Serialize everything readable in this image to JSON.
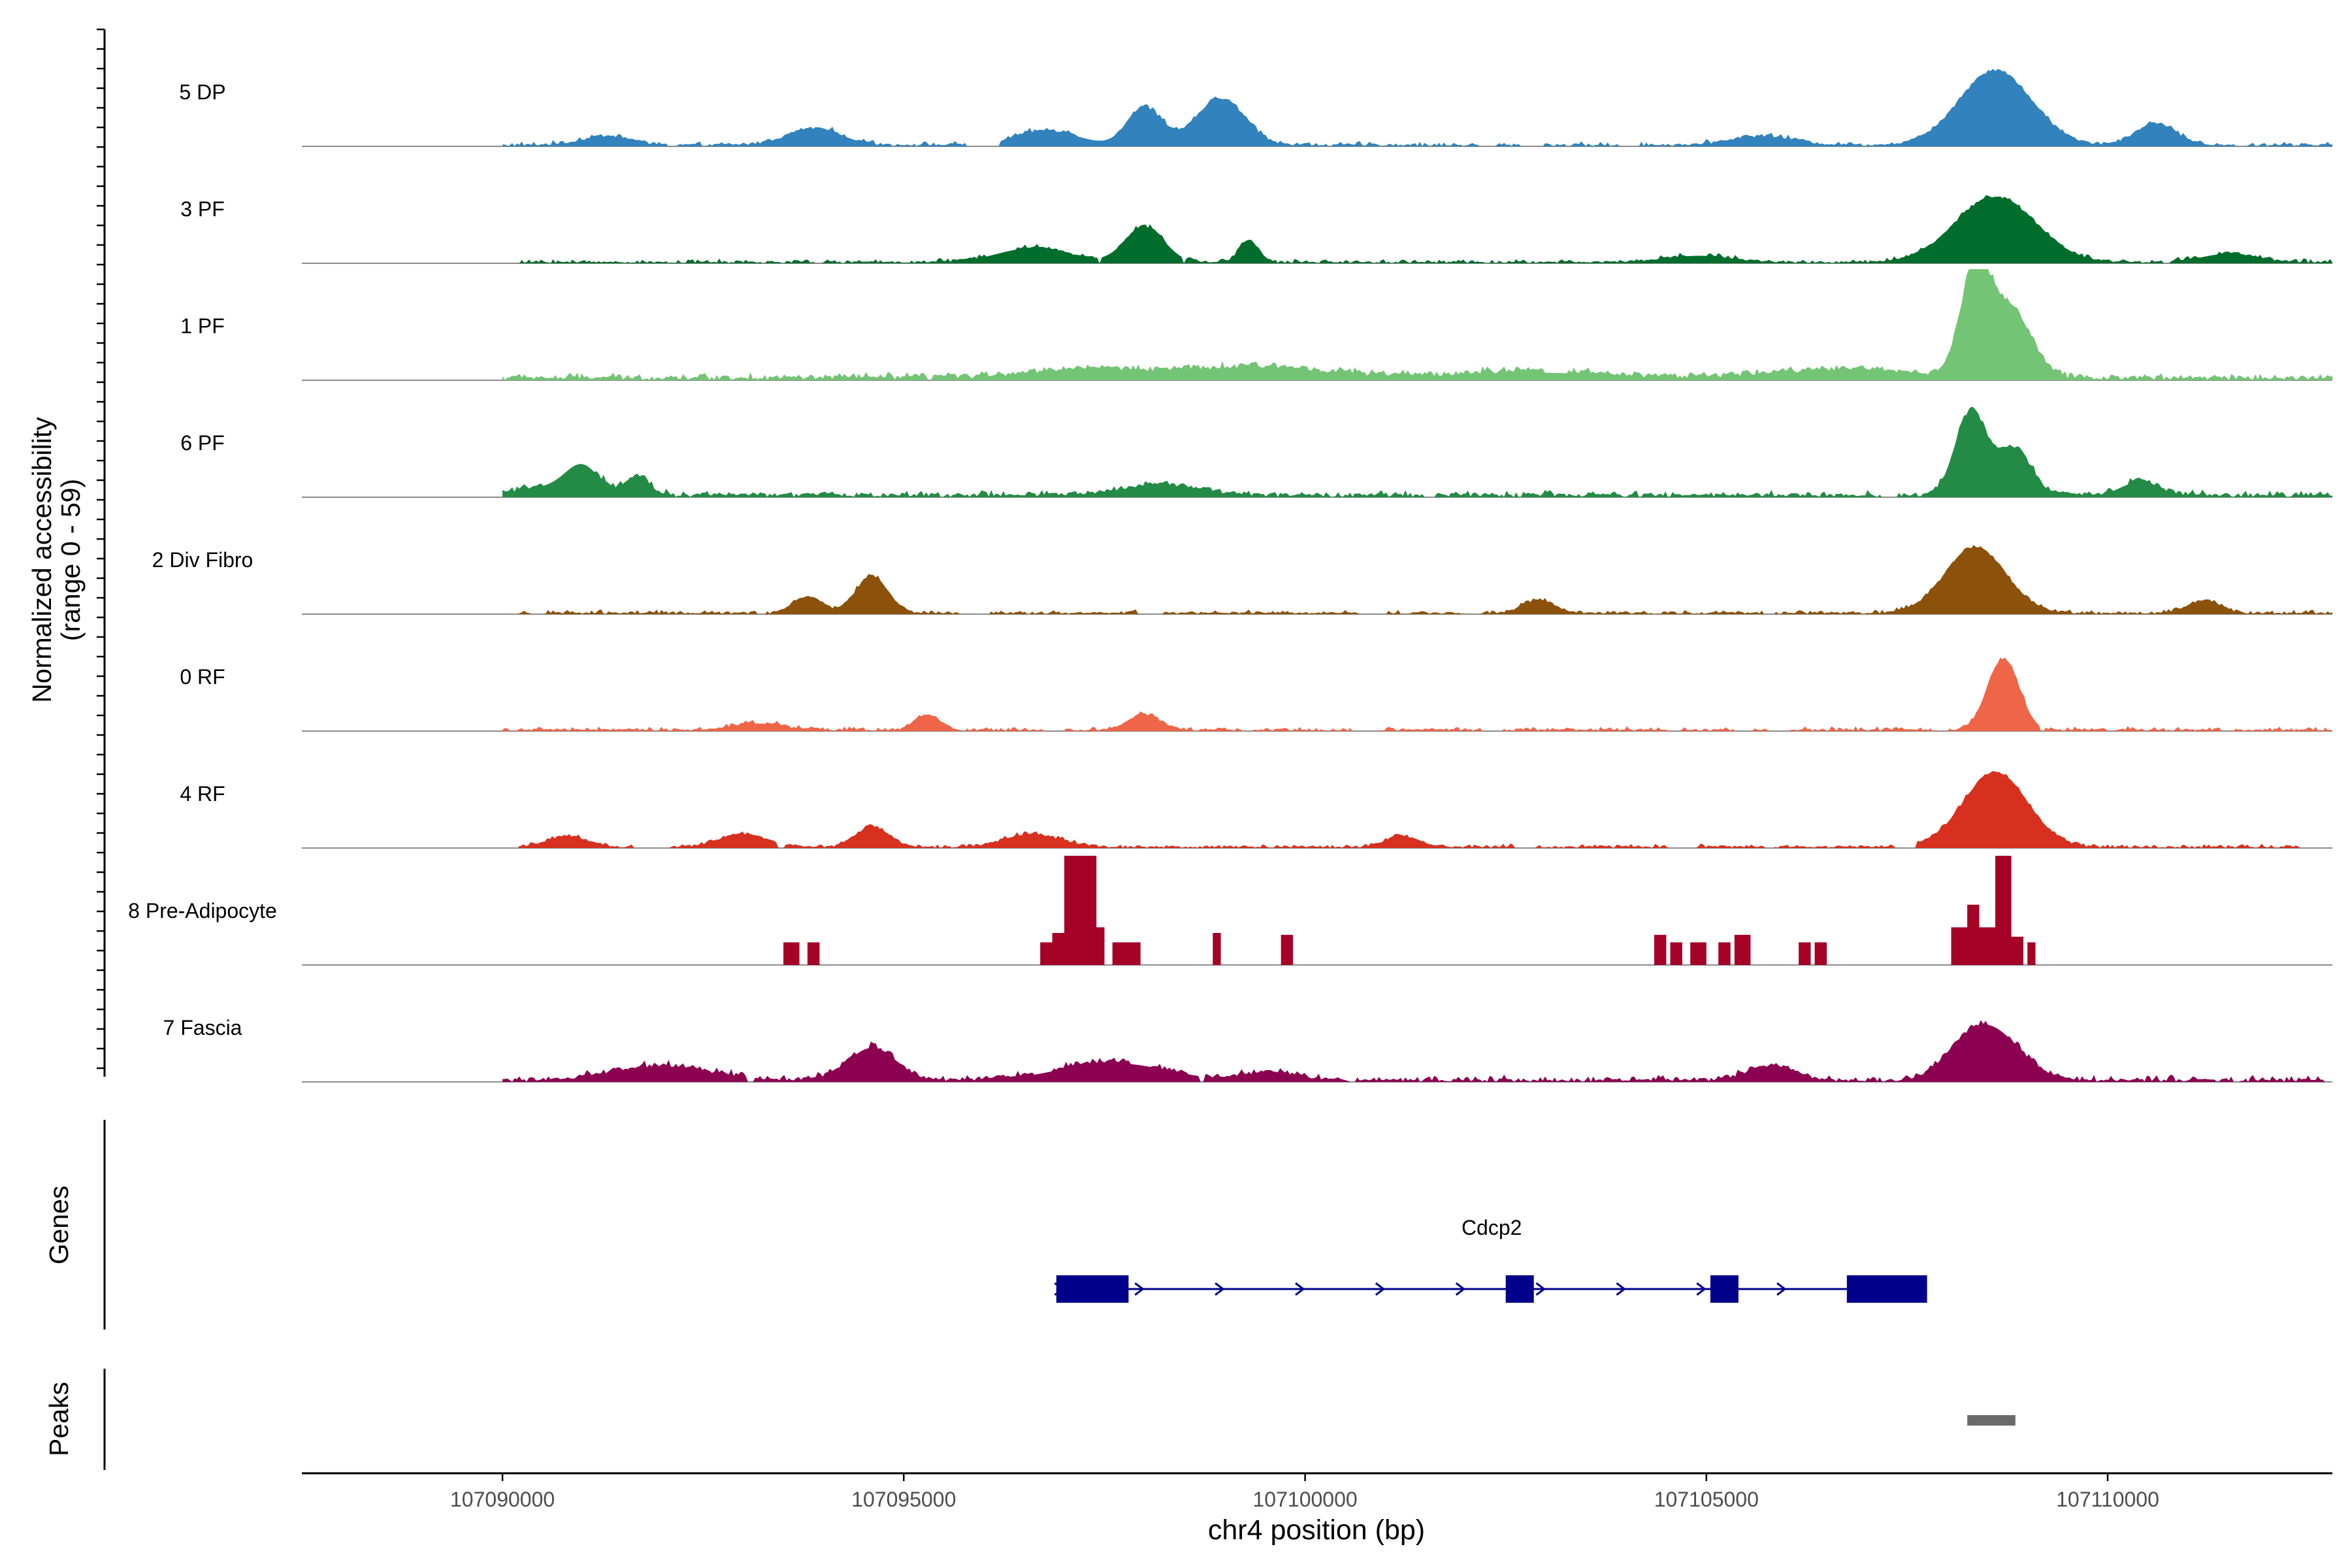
{
  "chart_data": {
    "type": "area",
    "title": "",
    "ylabel_line1": "Normalized accessibility",
    "ylabel_line2": "(range 0 - 59)",
    "xlabel": "chr4 position (bp)",
    "xlim": [
      107087500,
      107112800
    ],
    "ylim": [
      0,
      59
    ],
    "x_ticks": [
      107090000,
      107095000,
      107100000,
      107105000,
      107110000
    ],
    "x_tick_labels": [
      "107090000",
      "107095000",
      "107100000",
      "107105000",
      "107110000"
    ],
    "genes_label": "Genes",
    "peaks_label": "Peaks",
    "tracks": [
      {
        "name": "5 DP",
        "color": "#3182BD",
        "range": [
          107090000,
          107112800
        ],
        "baseline": 1.2,
        "noise": 1.8,
        "peaks": [
          [
            107093900,
            350,
            9
          ],
          [
            107098000,
            220,
            20
          ],
          [
            107098950,
            300,
            25
          ],
          [
            107108600,
            450,
            40
          ],
          [
            107110600,
            250,
            12
          ],
          [
            107096800,
            400,
            8
          ],
          [
            107091300,
            300,
            5
          ],
          [
            107105700,
            400,
            5
          ]
        ]
      },
      {
        "name": "3 PF",
        "color": "#006D2C",
        "range": [
          107090000,
          107112800
        ],
        "baseline": 1.0,
        "noise": 1.6,
        "peaks": [
          [
            107098000,
            250,
            19
          ],
          [
            107099300,
            120,
            12
          ],
          [
            107108600,
            500,
            35
          ],
          [
            107096600,
            450,
            8
          ],
          [
            107104900,
            400,
            4
          ],
          [
            107111500,
            350,
            5
          ]
        ]
      },
      {
        "name": "1 PF",
        "color": "#74C476",
        "range": [
          107090000,
          107112800
        ],
        "baseline": 2.5,
        "noise": 2.2,
        "peaks": [
          [
            107108350,
            180,
            58
          ],
          [
            107108800,
            250,
            37
          ],
          [
            107099500,
            900,
            6
          ],
          [
            107097300,
            800,
            5
          ],
          [
            107106700,
            900,
            5
          ],
          [
            107102900,
            900,
            4
          ]
        ]
      },
      {
        "name": "6 PF",
        "color": "#238B45",
        "range": [
          107090000,
          107112800
        ],
        "baseline": 2.0,
        "noise": 2.2,
        "peaks": [
          [
            107108300,
            200,
            45
          ],
          [
            107108850,
            200,
            25
          ],
          [
            107091000,
            200,
            13
          ],
          [
            107091700,
            150,
            10
          ],
          [
            107090700,
            400,
            6
          ],
          [
            107098200,
            500,
            6
          ],
          [
            107110400,
            250,
            8
          ]
        ]
      },
      {
        "name": "2 Div Fibro",
        "color": "#8C510A",
        "range": [
          107090000,
          107112800
        ],
        "baseline": 1.0,
        "noise": 1.6,
        "peaks": [
          [
            107094600,
            200,
            20
          ],
          [
            107108350,
            380,
            35
          ],
          [
            107093800,
            180,
            9
          ],
          [
            107102900,
            200,
            7
          ],
          [
            107111200,
            200,
            7
          ]
        ]
      },
      {
        "name": "0 RF",
        "color": "#EF6548",
        "range": [
          107090000,
          107112800
        ],
        "baseline": 1.2,
        "noise": 1.6,
        "peaks": [
          [
            107108700,
            200,
            38
          ],
          [
            107095300,
            150,
            8
          ],
          [
            107098000,
            200,
            8
          ],
          [
            107093200,
            300,
            4
          ]
        ]
      },
      {
        "name": "4 RF",
        "color": "#D7301F",
        "range": [
          107090200,
          107112800
        ],
        "baseline": 1.0,
        "noise": 1.5,
        "peaks": [
          [
            107108600,
            400,
            40
          ],
          [
            107094600,
            200,
            11
          ],
          [
            107096600,
            350,
            7
          ],
          [
            107093000,
            300,
            7
          ],
          [
            107090800,
            250,
            6
          ],
          [
            107101200,
            200,
            6
          ]
        ]
      },
      {
        "name": "8 Pre-Adipocyte",
        "color": "#A50026",
        "range": [
          107093500,
          107109500
        ],
        "sparse": true,
        "blocks": [
          [
            107093500,
            107093700,
            12
          ],
          [
            107093800,
            107093950,
            12
          ],
          [
            107096700,
            107096850,
            12
          ],
          [
            107096850,
            107097000,
            17
          ],
          [
            107097000,
            107097400,
            58
          ],
          [
            107097400,
            107097500,
            20
          ],
          [
            107097600,
            107097800,
            12
          ],
          [
            107097800,
            107097950,
            12
          ],
          [
            107098850,
            107098950,
            17
          ],
          [
            107099700,
            107099850,
            16
          ],
          [
            107104350,
            107104500,
            16
          ],
          [
            107104550,
            107104700,
            12
          ],
          [
            107104800,
            107105000,
            12
          ],
          [
            107105150,
            107105300,
            12
          ],
          [
            107105350,
            107105550,
            16
          ],
          [
            107106150,
            107106300,
            12
          ],
          [
            107106350,
            107106500,
            12
          ],
          [
            107108050,
            107108250,
            20
          ],
          [
            107108250,
            107108400,
            32
          ],
          [
            107108400,
            107108600,
            20
          ],
          [
            107108600,
            107108800,
            58
          ],
          [
            107108800,
            107108950,
            15
          ],
          [
            107109000,
            107109100,
            12
          ]
        ]
      },
      {
        "name": "7 Fascia",
        "color": "#8B0050",
        "range": [
          107090000,
          107112800
        ],
        "baseline": 1.5,
        "noise": 2.6,
        "peaks": [
          [
            107094600,
            300,
            18
          ],
          [
            107092000,
            600,
            8
          ],
          [
            107097600,
            700,
            10
          ],
          [
            107108600,
            350,
            24
          ],
          [
            107108200,
            300,
            12
          ],
          [
            107105800,
            300,
            8
          ],
          [
            107099600,
            300,
            5
          ]
        ]
      }
    ],
    "gene": {
      "name": "Cdcp2",
      "start": 107096900,
      "end": 107107750,
      "strand": "+",
      "color": "#00008B",
      "exons": [
        [
          107096900,
          107097800
        ],
        [
          107102500,
          107102850
        ],
        [
          107105050,
          107105400
        ],
        [
          107106750,
          107107750
        ]
      ]
    },
    "peaks_track": {
      "color": "#696969",
      "regions": [
        [
          107108250,
          107108850
        ]
      ]
    }
  }
}
